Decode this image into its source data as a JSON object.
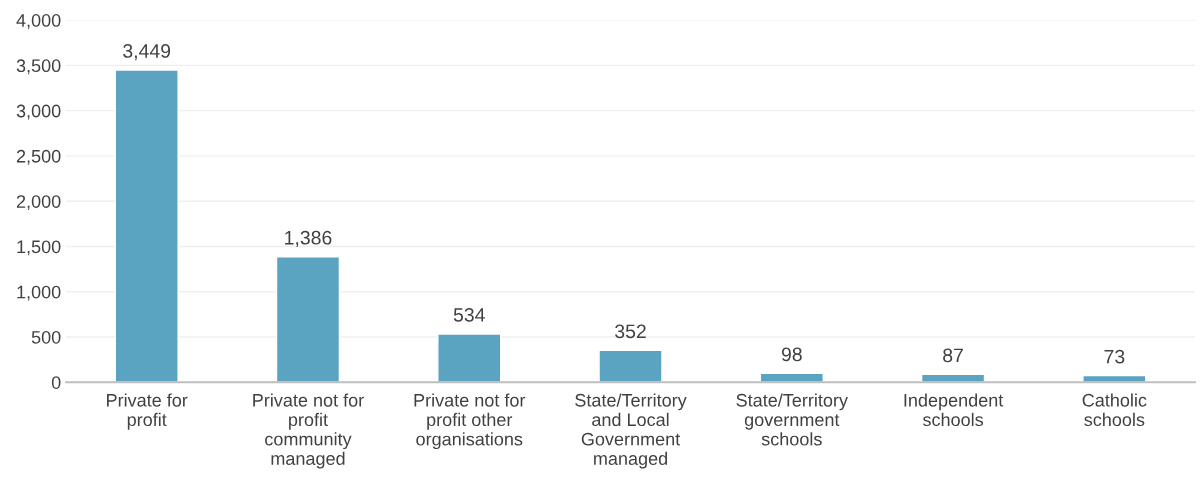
{
  "chart_data": {
    "type": "bar",
    "categories": [
      "Private for\nprofit",
      "Private not for\nprofit\ncommunity\nmanaged",
      "Private not for\nprofit other\norganisations",
      "State/Territory\nand Local\nGovernment\nmanaged",
      "State/Territory\ngovernment\nschools",
      "Independent\nschools",
      "Catholic\nschools"
    ],
    "values": [
      3449,
      1386,
      534,
      352,
      98,
      87,
      73
    ],
    "color": "#5ba4c1",
    "value_labels": [
      "3,449",
      "1,386",
      "534",
      "352",
      "98",
      "87",
      "73"
    ],
    "ylim": [
      0,
      4000
    ],
    "yticks": [
      {
        "value": 0,
        "label": "0"
      },
      {
        "value": 500,
        "label": "500"
      },
      {
        "value": 1000,
        "label": "1,000"
      },
      {
        "value": 1500,
        "label": "1,500"
      },
      {
        "value": 2000,
        "label": "2,000"
      },
      {
        "value": 2500,
        "label": "2,500"
      },
      {
        "value": 3000,
        "label": "3,000"
      },
      {
        "value": 3500,
        "label": "3,500"
      },
      {
        "value": 4000,
        "label": "4,000"
      }
    ],
    "grid": "y"
  }
}
